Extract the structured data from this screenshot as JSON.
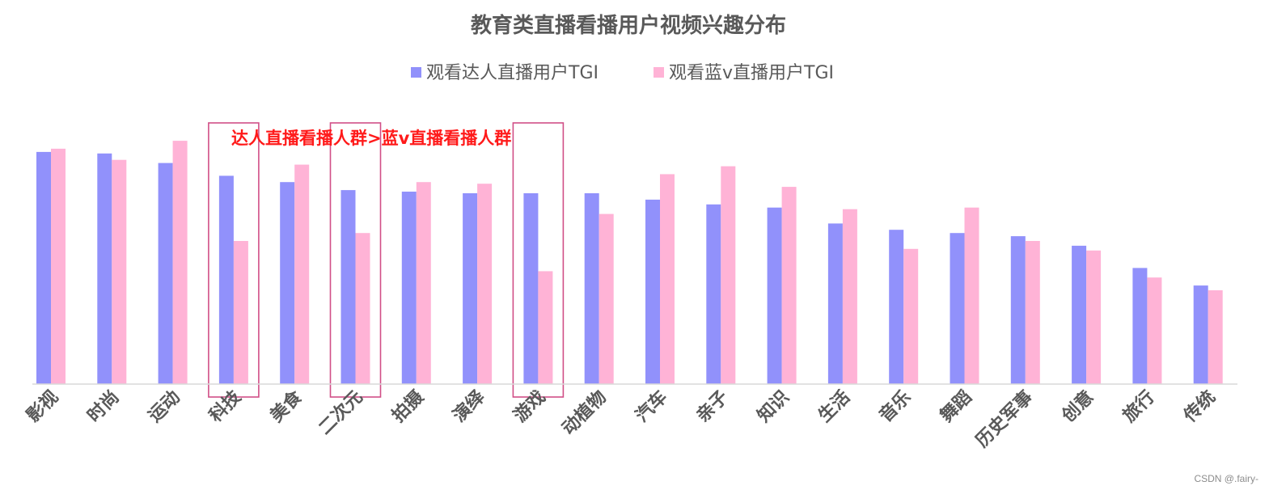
{
  "chart_data": {
    "type": "bar",
    "title": "教育类直播看播用户视频兴趣分布",
    "xlabel": "",
    "ylabel": "",
    "ylim": [
      0,
      150
    ],
    "grid": false,
    "legend_position": "top-center",
    "categories": [
      "影视",
      "时尚",
      "运动",
      "科技",
      "美食",
      "二次元",
      "拍摄",
      "演绎",
      "游戏",
      "动植物",
      "汽车",
      "亲子",
      "知识",
      "生活",
      "音乐",
      "舞蹈",
      "历史军事",
      "创意",
      "旅行",
      "传统"
    ],
    "series": [
      {
        "name": "观看达人直播用户TGI",
        "color": "#9191fb",
        "values": [
          146,
          145,
          139,
          131,
          127,
          122,
          121,
          120,
          120,
          120,
          116,
          113,
          111,
          101,
          97,
          95,
          93,
          87,
          73,
          62
        ]
      },
      {
        "name": "观看蓝v直播用户TGI",
        "color": "#ffb3d6",
        "values": [
          148,
          141,
          153,
          90,
          138,
          95,
          127,
          126,
          71,
          107,
          132,
          137,
          124,
          110,
          85,
          111,
          90,
          84,
          67,
          59
        ]
      }
    ],
    "highlighted_categories": [
      "科技",
      "二次元",
      "游戏"
    ],
    "highlight_color": "#d14f87",
    "annotation": {
      "text": "达人直播看播人群>蓝v直播看播人群",
      "color": "#ff1a1a"
    }
  },
  "watermark": "CSDN @.fairy-"
}
